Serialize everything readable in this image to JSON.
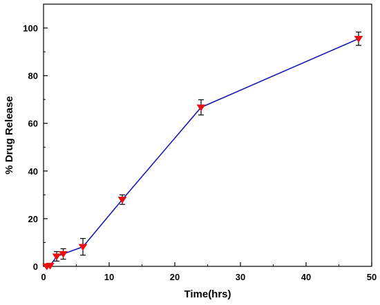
{
  "chart_data": {
    "type": "line",
    "xlabel": "Time(hrs)",
    "ylabel": "% Drug Release",
    "xlim": [
      0,
      50
    ],
    "ylim": [
      0,
      110
    ],
    "x_ticks": [
      0,
      10,
      20,
      30,
      40,
      50
    ],
    "y_ticks": [
      0,
      20,
      40,
      60,
      80,
      100
    ],
    "grid": false,
    "legend": "none",
    "series": [
      {
        "line_color": "#1a1ab0",
        "marker_color": "#e81010",
        "marker": "triangle-down",
        "x": [
          0.5,
          1,
          2,
          3,
          6,
          12,
          24,
          48
        ],
        "y": [
          0,
          0.3,
          4.2,
          5.2,
          8.2,
          28.0,
          66.7,
          95.5
        ],
        "error": [
          0,
          0,
          2.0,
          2.2,
          3.5,
          2.0,
          3.2,
          2.8
        ]
      }
    ]
  }
}
